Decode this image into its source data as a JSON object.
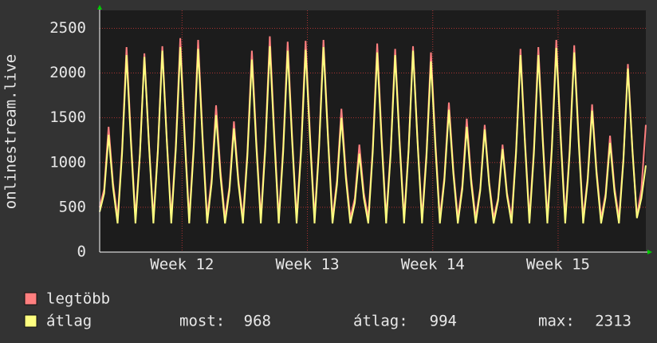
{
  "chart_data": {
    "type": "line",
    "y_label": "onlinestream.live",
    "x": [
      0,
      0.25,
      0.5,
      0.75,
      1,
      1.25,
      1.5,
      1.75,
      2,
      2.25,
      2.5,
      2.75,
      3,
      3.25,
      3.5,
      3.75,
      4,
      4.25,
      4.5,
      4.75,
      5,
      5.25,
      5.5,
      5.75,
      6,
      6.25,
      6.5,
      6.75,
      7,
      7.25,
      7.5,
      7.75,
      8,
      8.25,
      8.5,
      8.75,
      9,
      9.25,
      9.5,
      9.75,
      10,
      10.25,
      10.5,
      10.75,
      11,
      11.25,
      11.5,
      11.75,
      12,
      12.25,
      12.5,
      12.75,
      13,
      13.25,
      13.5,
      13.75,
      14,
      14.25,
      14.5,
      14.75,
      15,
      15.25,
      15.5,
      15.75,
      16,
      16.25,
      16.5,
      16.75,
      17,
      17.25,
      17.5,
      17.75,
      18,
      18.25,
      18.5,
      18.75,
      19,
      19.25,
      19.5,
      19.75,
      20,
      20.25,
      20.5,
      20.75,
      21,
      21.25,
      21.5,
      21.75,
      22,
      22.25,
      22.5,
      22.75,
      23,
      23.25,
      23.5,
      23.75,
      24,
      24.25,
      24.5,
      24.75,
      25,
      25.25,
      25.5,
      25.75,
      26,
      26.25,
      26.5,
      26.75,
      27,
      27.25,
      27.5,
      27.75,
      28,
      28.25,
      28.5,
      28.75,
      29,
      29.25,
      29.5,
      29.75,
      30,
      30.25,
      30.5
    ],
    "series": [
      {
        "name": "legtöbb",
        "color": "#ff7f7f",
        "values": [
          500,
          700,
          1400,
          770,
          380,
          1145,
          2290,
          1260,
          380,
          1110,
          2220,
          1220,
          380,
          1150,
          2300,
          1265,
          380,
          1195,
          2390,
          1315,
          380,
          1185,
          2370,
          1300,
          380,
          820,
          1640,
          900,
          380,
          730,
          1460,
          800,
          380,
          1125,
          2250,
          1240,
          380,
          1205,
          2410,
          1330,
          380,
          1175,
          2350,
          1290,
          380,
          1180,
          2360,
          1300,
          380,
          1185,
          2370,
          1300,
          380,
          800,
          1600,
          880,
          380,
          600,
          1200,
          660,
          380,
          1165,
          2330,
          1280,
          380,
          1135,
          2270,
          1250,
          380,
          1150,
          2300,
          1265,
          380,
          1115,
          2230,
          1230,
          380,
          835,
          1670,
          920,
          380,
          745,
          1490,
          820,
          380,
          710,
          1420,
          780,
          380,
          600,
          1200,
          660,
          380,
          1135,
          2270,
          1250,
          380,
          1145,
          2290,
          1260,
          380,
          1185,
          2370,
          1300,
          380,
          1155,
          2310,
          1270,
          380,
          825,
          1650,
          910,
          380,
          650,
          1300,
          720,
          380,
          1050,
          2100,
          1155,
          400,
          700,
          1420
        ]
      },
      {
        "name": "átlag",
        "color": "#ffff80",
        "values": [
          450,
          655,
          1310,
          720,
          320,
          1100,
          2200,
          1210,
          320,
          1090,
          2180,
          1200,
          320,
          1125,
          2250,
          1240,
          320,
          1145,
          2290,
          1260,
          320,
          1135,
          2270,
          1250,
          320,
          765,
          1530,
          840,
          320,
          690,
          1380,
          760,
          320,
          1075,
          2150,
          1180,
          320,
          1150,
          2300,
          1265,
          320,
          1125,
          2250,
          1240,
          320,
          1130,
          2260,
          1245,
          320,
          1145,
          2290,
          1260,
          320,
          750,
          1500,
          825,
          320,
          550,
          1100,
          605,
          320,
          1115,
          2230,
          1225,
          320,
          1100,
          2200,
          1210,
          320,
          1125,
          2250,
          1240,
          320,
          1065,
          2130,
          1170,
          320,
          795,
          1590,
          875,
          320,
          700,
          1400,
          770,
          320,
          685,
          1370,
          755,
          320,
          575,
          1150,
          630,
          320,
          1100,
          2200,
          1210,
          320,
          1100,
          2200,
          1210,
          320,
          1140,
          2280,
          1255,
          320,
          1115,
          2230,
          1225,
          320,
          790,
          1580,
          870,
          320,
          610,
          1220,
          670,
          320,
          1025,
          2050,
          1130,
          380,
          600,
          968
        ]
      }
    ],
    "xlim": [
      0,
      30.5
    ],
    "xticks": [
      {
        "value": 4.6,
        "label": "Week 12"
      },
      {
        "value": 11.6,
        "label": "Week 13"
      },
      {
        "value": 18.6,
        "label": "Week 14"
      },
      {
        "value": 25.6,
        "label": "Week 15"
      }
    ],
    "ylim": [
      0,
      2700
    ],
    "yticks": [
      0,
      500,
      1000,
      1500,
      2000,
      2500
    ],
    "grid": true,
    "stats": [
      {
        "label": "most:",
        "value": 968
      },
      {
        "label": "átlag:",
        "value": 994
      },
      {
        "label": "max:",
        "value": 2313
      }
    ]
  }
}
